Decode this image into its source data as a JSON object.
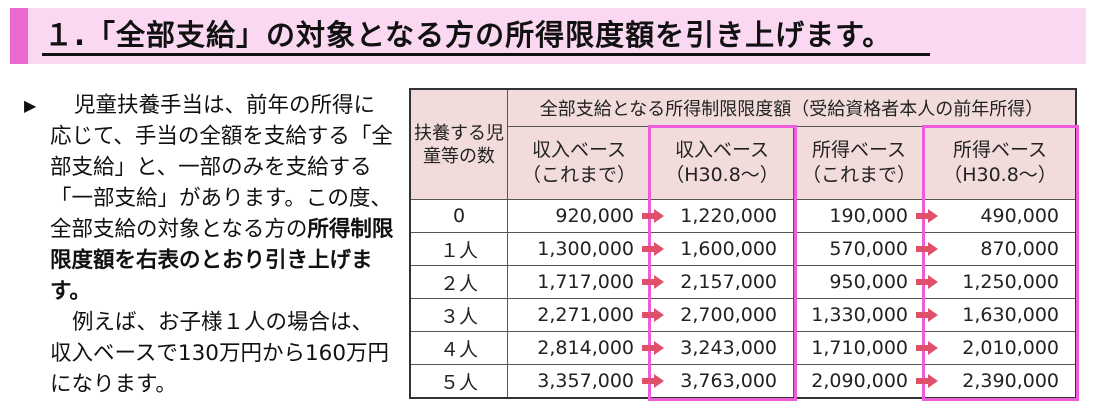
{
  "title": "１.「全部支給」の対象となる方の所得限度額を引き上げます。",
  "description": {
    "bullet": "▶",
    "para1_normal": "児童扶養手当は、前年の所得に応じて、手当の全額を支給する「全部支給」と、一部のみを支給する「一部支給」があります。この度、全部支給の対象となる方の",
    "para1_bold": "所得制限限度額を右表のとおり引き上げます。",
    "para2": "例えば、お子様１人の場合は、収入ベースで130万円から160万円になります。"
  },
  "table": {
    "header_count": "扶養する児童等の数",
    "header_group": "全部支給となる所得制限限度額（受給資格者本人の前年所得）",
    "columns": [
      {
        "line1": "収入ベース",
        "line2": "（これまで）"
      },
      {
        "line1": "収入ベース",
        "line2": "（H30.8～）"
      },
      {
        "line1": "所得ベース",
        "line2": "（これまで）"
      },
      {
        "line1": "所得ベース",
        "line2": "（H30.8～）"
      }
    ],
    "rows": [
      {
        "count": "0",
        "values": [
          "920,000",
          "1,220,000",
          "190,000",
          "490,000"
        ]
      },
      {
        "count": "１人",
        "values": [
          "1,300,000",
          "1,600,000",
          "570,000",
          "870,000"
        ]
      },
      {
        "count": "２人",
        "values": [
          "1,717,000",
          "2,157,000",
          "950,000",
          "1,250,000"
        ]
      },
      {
        "count": "３人",
        "values": [
          "2,271,000",
          "2,700,000",
          "1,330,000",
          "1,630,000"
        ]
      },
      {
        "count": "４人",
        "values": [
          "2,814,000",
          "3,243,000",
          "1,710,000",
          "2,010,000"
        ]
      },
      {
        "count": "５人",
        "values": [
          "3,357,000",
          "3,763,000",
          "2,090,000",
          "2,390,000"
        ]
      }
    ]
  },
  "colors": {
    "title_band": "#fbd8f2",
    "title_accent": "#ea6ad2",
    "header_fill": "#f2dcdb",
    "highlight_border": "#ef5cd9",
    "arrow": "#e0506a"
  }
}
